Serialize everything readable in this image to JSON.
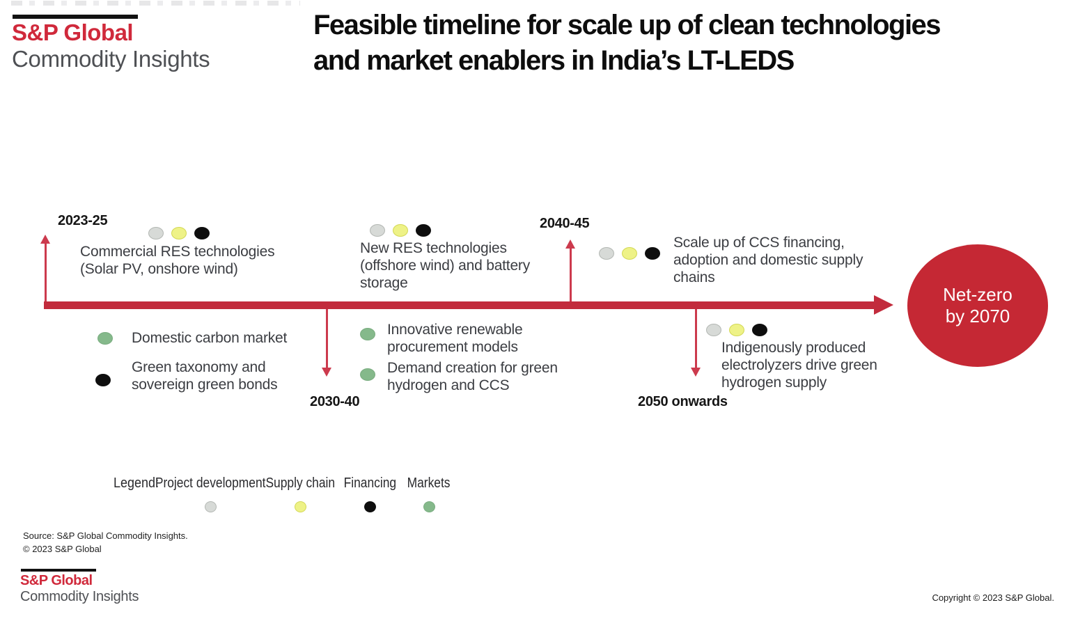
{
  "colors": {
    "accent_red": "#c22b3c",
    "endpoint_red": "#c52834",
    "logo_red": "#d0293b",
    "dot_gray": "#d7dad7",
    "dot_yellow": "#eef287",
    "dot_black": "#0e0e0e",
    "dot_green": "#85b98b"
  },
  "header": {
    "logo_brand": "S&P Global",
    "logo_division": "Commodity Insights",
    "title": "Feasible timeline for scale up of clean technologies\nand market enablers in India’s LT-LEDS"
  },
  "timeline": {
    "periods": {
      "p1": "2023-25",
      "p2": "2030-40",
      "p3": "2040-45",
      "p4": "2050 onwards"
    },
    "milestones": {
      "m1": {
        "dots": [
          "project-development",
          "supply-chain",
          "financing"
        ],
        "text": "Commercial RES technologies\n(Solar PV, onshore wind)"
      },
      "m2": {
        "dots": [
          "project-development",
          "supply-chain",
          "financing"
        ],
        "text": "New RES technologies\n(offshore wind) and battery\nstorage"
      },
      "m3": {
        "dots": [
          "project-development",
          "supply-chain",
          "financing"
        ],
        "text": "Scale up of CCS financing,\nadoption and domestic supply\nchains"
      },
      "m4": {
        "dots": [
          "project-development",
          "supply-chain",
          "financing"
        ],
        "text": "Indigenously produced\nelectrolyzers drive green\nhydrogen supply"
      }
    },
    "bullets": {
      "b1": {
        "dots": [
          "markets"
        ],
        "text": "Domestic carbon market"
      },
      "b2": {
        "dots": [
          "financing"
        ],
        "text": "Green taxonomy and\nsovereign green bonds"
      },
      "b3": {
        "dots": [
          "markets"
        ],
        "text": "Innovative renewable\nprocurement models"
      },
      "b4": {
        "dots": [
          "markets"
        ],
        "text": "Demand creation for green\nhydrogen and CCS"
      }
    },
    "endpoint": "Net-zero\nby 2070"
  },
  "legend": {
    "label": "Legend:",
    "items": [
      {
        "name": "Project development",
        "dots": [
          "project-development"
        ]
      },
      {
        "name": "Supply chain",
        "dots": [
          "supply-chain"
        ]
      },
      {
        "name": "Financing",
        "dots": [
          "financing"
        ]
      },
      {
        "name": "Markets",
        "dots": [
          "markets"
        ]
      }
    ]
  },
  "footer": {
    "source_line1": "Source: S&P Global Commodity Insights.",
    "source_line2": "© 2023 S&P Global",
    "logo_brand": "S&P Global",
    "logo_division": "Commodity Insights",
    "copyright": "Copyright © 2023 S&P Global."
  }
}
